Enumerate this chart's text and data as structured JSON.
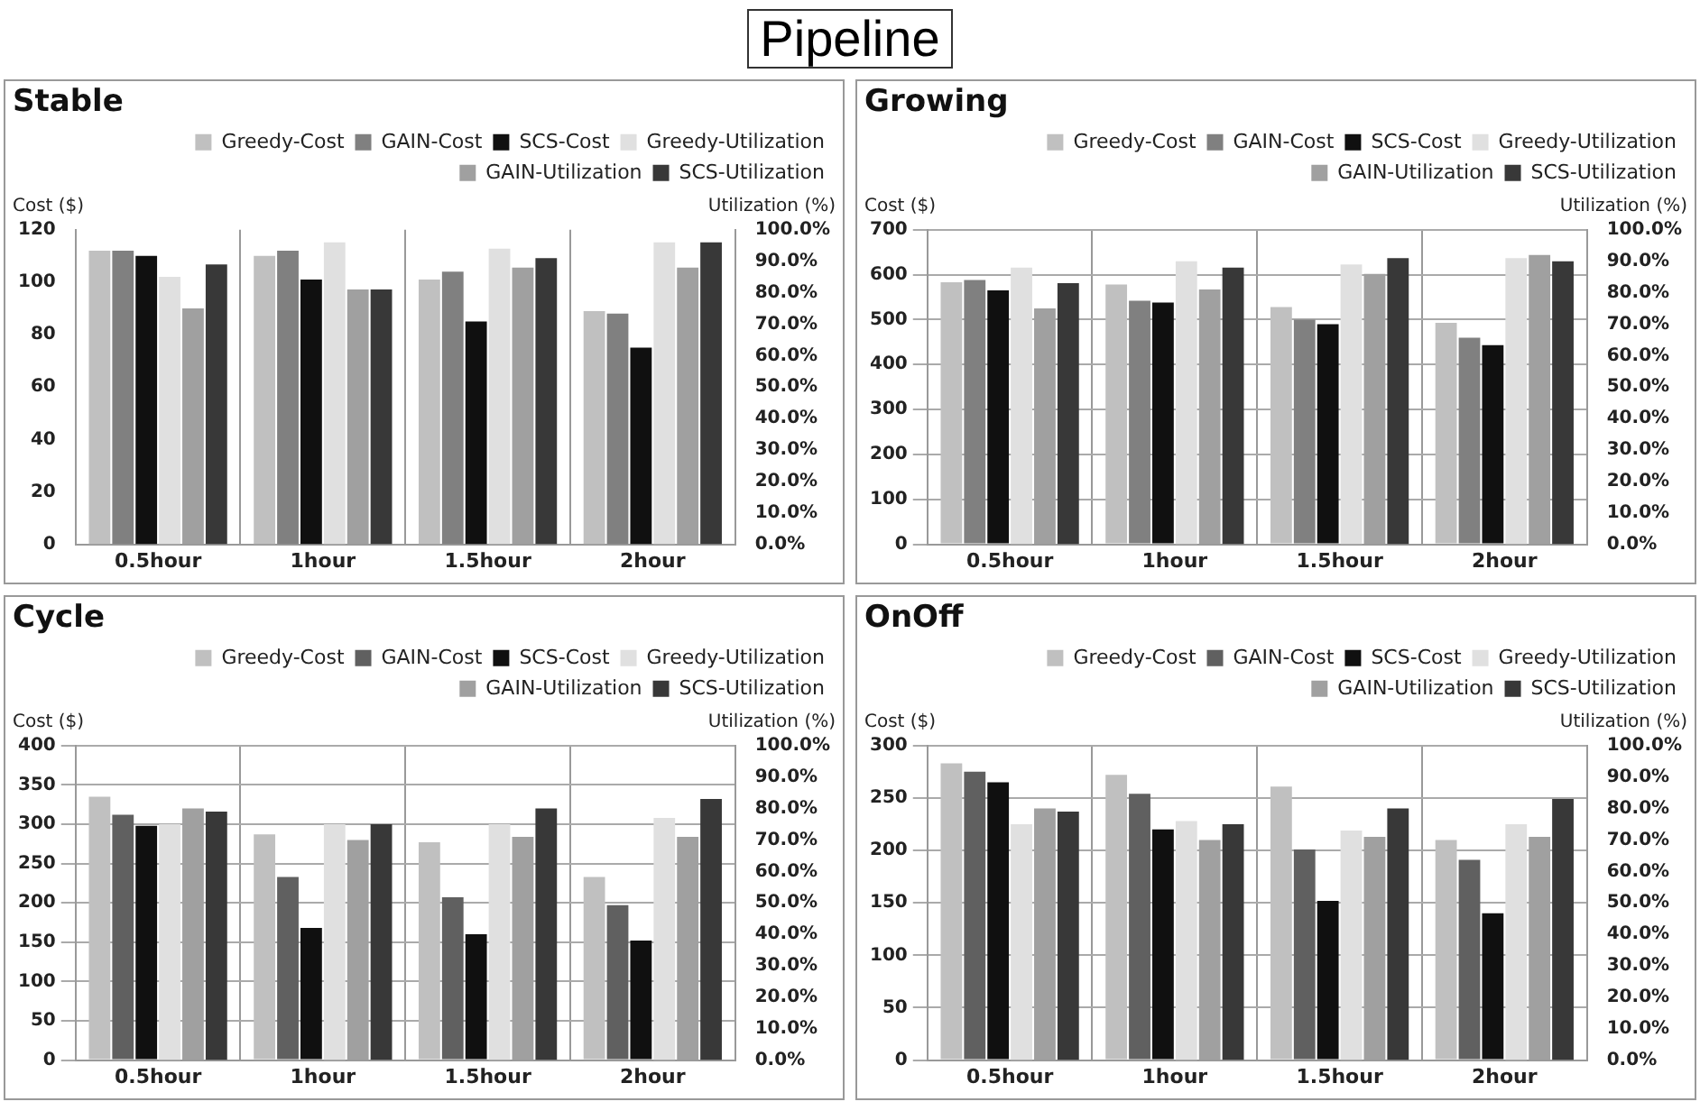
{
  "chart_data": [
    {
      "type": "other",
      "title": "Pipeline"
    },
    {
      "type": "bar",
      "title": "Stable",
      "ylabel": "Cost ($)",
      "y2label": "Utilization (%)",
      "categories": [
        "0.5hour",
        "1hour",
        "1.5hour",
        "2hour"
      ],
      "ylim": [
        0,
        120
      ],
      "yticks": [
        0,
        20,
        40,
        60,
        80,
        100,
        120
      ],
      "y2lim": [
        0,
        100
      ],
      "y2ticks": [
        {
          "value": 0,
          "label": "0.0%"
        },
        {
          "value": 10,
          "label": "10.0%"
        },
        {
          "value": 20,
          "label": "20.0%"
        },
        {
          "value": 30,
          "label": "30.0%"
        },
        {
          "value": 40,
          "label": "40.0%"
        },
        {
          "value": 50,
          "label": "50.0%"
        },
        {
          "value": 60,
          "label": "60.0%"
        },
        {
          "value": 70,
          "label": "70.0%"
        },
        {
          "value": 80,
          "label": "80.0%"
        },
        {
          "value": 90,
          "label": "90.0%"
        },
        {
          "value": 100,
          "label": "100.0%"
        }
      ],
      "grid": "x",
      "legend": "top",
      "series": [
        {
          "name": "Greedy-Cost",
          "color": "#c0c0c0",
          "values": [
            112,
            110,
            101,
            89
          ]
        },
        {
          "name": "GAIN-Cost",
          "color": "#808080",
          "values": [
            112,
            112,
            104,
            88
          ]
        },
        {
          "name": "SCS-Cost",
          "color": "#101010",
          "values": [
            110,
            101,
            85,
            75
          ]
        },
        {
          "name": "Greedy-Utilization",
          "color": "#e0e0e0",
          "axis": "y2",
          "values": [
            85,
            96,
            94,
            96
          ]
        },
        {
          "name": "GAIN-Utilization",
          "color": "#a0a0a0",
          "axis": "y2",
          "values": [
            75,
            81,
            88,
            88
          ]
        },
        {
          "name": "SCS-Utilization",
          "color": "#383838",
          "axis": "y2",
          "values": [
            89,
            81,
            91,
            96
          ]
        }
      ]
    },
    {
      "type": "bar",
      "title": "Growing",
      "ylabel": "Cost ($)",
      "y2label": "Utilization (%)",
      "categories": [
        "0.5hour",
        "1hour",
        "1.5hour",
        "2hour"
      ],
      "ylim": [
        0,
        700
      ],
      "yticks": [
        0,
        100,
        200,
        300,
        400,
        500,
        600,
        700
      ],
      "y2lim": [
        0,
        100
      ],
      "y2ticks": [
        {
          "value": 0,
          "label": "0.0%"
        },
        {
          "value": 10,
          "label": "10.0%"
        },
        {
          "value": 20,
          "label": "20.0%"
        },
        {
          "value": 30,
          "label": "30.0%"
        },
        {
          "value": 40,
          "label": "40.0%"
        },
        {
          "value": 50,
          "label": "50.0%"
        },
        {
          "value": 60,
          "label": "60.0%"
        },
        {
          "value": 70,
          "label": "70.0%"
        },
        {
          "value": 80,
          "label": "80.0%"
        },
        {
          "value": 90,
          "label": "90.0%"
        },
        {
          "value": 100,
          "label": "100.0%"
        }
      ],
      "grid": true,
      "legend": "top",
      "series": [
        {
          "name": "Greedy-Cost",
          "color": "#c0c0c0",
          "values": [
            583,
            578,
            528,
            493
          ]
        },
        {
          "name": "GAIN-Cost",
          "color": "#808080",
          "values": [
            588,
            542,
            500,
            460
          ]
        },
        {
          "name": "SCS-Cost",
          "color": "#101010",
          "values": [
            565,
            538,
            490,
            443
          ]
        },
        {
          "name": "Greedy-Utilization",
          "color": "#e0e0e0",
          "axis": "y2",
          "values": [
            88,
            90,
            89,
            91
          ]
        },
        {
          "name": "GAIN-Utilization",
          "color": "#a0a0a0",
          "axis": "y2",
          "values": [
            75,
            81,
            86,
            92
          ]
        },
        {
          "name": "SCS-Utilization",
          "color": "#383838",
          "axis": "y2",
          "values": [
            83,
            88,
            91,
            90
          ]
        }
      ]
    },
    {
      "type": "bar",
      "title": "Cycle",
      "ylabel": "Cost ($)",
      "y2label": "Utilization (%)",
      "categories": [
        "0.5hour",
        "1hour",
        "1.5hour",
        "2hour"
      ],
      "ylim": [
        0,
        400
      ],
      "yticks": [
        0,
        50,
        100,
        150,
        200,
        250,
        300,
        350,
        400
      ],
      "y2lim": [
        0,
        100
      ],
      "y2ticks": [
        {
          "value": 0,
          "label": "0.0%"
        },
        {
          "value": 10,
          "label": "10.0%"
        },
        {
          "value": 20,
          "label": "20.0%"
        },
        {
          "value": 30,
          "label": "30.0%"
        },
        {
          "value": 40,
          "label": "40.0%"
        },
        {
          "value": 50,
          "label": "50.0%"
        },
        {
          "value": 60,
          "label": "60.0%"
        },
        {
          "value": 70,
          "label": "70.0%"
        },
        {
          "value": 80,
          "label": "80.0%"
        },
        {
          "value": 90,
          "label": "90.0%"
        },
        {
          "value": 100,
          "label": "100.0%"
        }
      ],
      "grid": true,
      "legend": "top",
      "series": [
        {
          "name": "Greedy-Cost",
          "color": "#c0c0c0",
          "values": [
            335,
            287,
            277,
            233
          ]
        },
        {
          "name": "GAIN-Cost",
          "color": "#606060",
          "values": [
            312,
            233,
            207,
            197
          ]
        },
        {
          "name": "SCS-Cost",
          "color": "#101010",
          "values": [
            298,
            168,
            160,
            152
          ]
        },
        {
          "name": "Greedy-Utilization",
          "color": "#e0e0e0",
          "axis": "y2",
          "values": [
            75,
            75,
            75,
            77
          ]
        },
        {
          "name": "GAIN-Utilization",
          "color": "#a0a0a0",
          "axis": "y2",
          "values": [
            80,
            70,
            71,
            71
          ]
        },
        {
          "name": "SCS-Utilization",
          "color": "#383838",
          "axis": "y2",
          "values": [
            79,
            75,
            80,
            83
          ]
        }
      ]
    },
    {
      "type": "bar",
      "title": "OnOff",
      "ylabel": "Cost ($)",
      "y2label": "Utilization (%)",
      "categories": [
        "0.5hour",
        "1hour",
        "1.5hour",
        "2hour"
      ],
      "ylim": [
        0,
        300
      ],
      "yticks": [
        0,
        50,
        100,
        150,
        200,
        250,
        300
      ],
      "y2lim": [
        0,
        100
      ],
      "y2ticks": [
        {
          "value": 0,
          "label": "0.0%"
        },
        {
          "value": 10,
          "label": "10.0%"
        },
        {
          "value": 20,
          "label": "20.0%"
        },
        {
          "value": 30,
          "label": "30.0%"
        },
        {
          "value": 40,
          "label": "40.0%"
        },
        {
          "value": 50,
          "label": "50.0%"
        },
        {
          "value": 60,
          "label": "60.0%"
        },
        {
          "value": 70,
          "label": "70.0%"
        },
        {
          "value": 80,
          "label": "80.0%"
        },
        {
          "value": 90,
          "label": "90.0%"
        },
        {
          "value": 100,
          "label": "100.0%"
        }
      ],
      "grid": true,
      "legend": "top",
      "series": [
        {
          "name": "Greedy-Cost",
          "color": "#c0c0c0",
          "values": [
            283,
            272,
            261,
            210
          ]
        },
        {
          "name": "GAIN-Cost",
          "color": "#606060",
          "values": [
            275,
            254,
            201,
            191
          ]
        },
        {
          "name": "SCS-Cost",
          "color": "#101010",
          "values": [
            265,
            220,
            152,
            140
          ]
        },
        {
          "name": "Greedy-Utilization",
          "color": "#e0e0e0",
          "axis": "y2",
          "values": [
            75,
            76,
            73,
            75
          ]
        },
        {
          "name": "GAIN-Utilization",
          "color": "#a0a0a0",
          "axis": "y2",
          "values": [
            80,
            70,
            71,
            71
          ]
        },
        {
          "name": "SCS-Utilization",
          "color": "#383838",
          "axis": "y2",
          "values": [
            79,
            75,
            80,
            83
          ]
        }
      ]
    }
  ]
}
